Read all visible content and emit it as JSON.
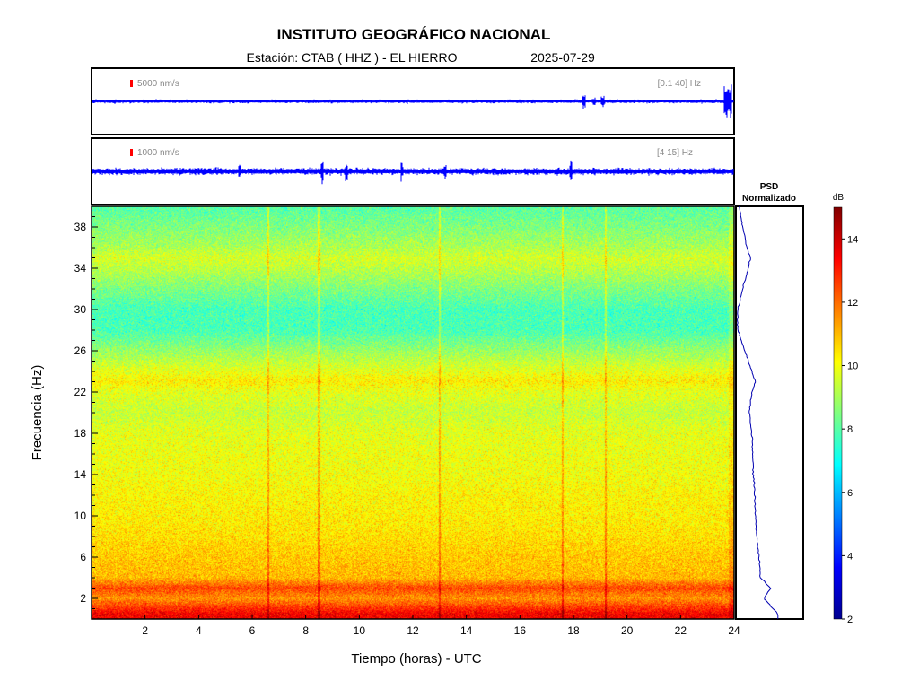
{
  "header": {
    "title": "INSTITUTO GEOGRÁFICO NACIONAL",
    "station_label": "Estación:  CTAB ( HHZ ) - EL HIERRO",
    "date": "2025-07-29"
  },
  "traces": [
    {
      "scale_label": "5000 nm/s",
      "filter_label": "[0.1 40] Hz",
      "color": "#0000ff",
      "scale_bar_color": "#ff0000"
    },
    {
      "scale_label": "1000 nm/s",
      "filter_label": "[4 15] Hz",
      "color": "#0000ff",
      "scale_bar_color": "#ff0000"
    }
  ],
  "psd_panel": {
    "title_line1": "PSD",
    "title_line2": "Normalizado"
  },
  "colorbar": {
    "unit": "dB",
    "min": 2,
    "max": 15,
    "ticks": [
      2,
      4,
      6,
      8,
      10,
      12,
      14
    ]
  },
  "chart_data": {
    "type": "heatmap",
    "xlabel": "Tiempo (horas) - UTC",
    "ylabel": "Frecuencia  (Hz)",
    "xlim": [
      0,
      24
    ],
    "ylim": [
      0,
      40
    ],
    "xticks": [
      2,
      4,
      6,
      8,
      10,
      12,
      14,
      16,
      18,
      20,
      22,
      24
    ],
    "yticks": [
      2,
      6,
      10,
      14,
      18,
      22,
      26,
      30,
      34,
      38
    ],
    "colormap": "jet",
    "mean_spectrum_dB": [
      {
        "freq": 0.5,
        "dB": 13.5
      },
      {
        "freq": 2,
        "dB": 11.5
      },
      {
        "freq": 3,
        "dB": 12.5
      },
      {
        "freq": 4,
        "dB": 11
      },
      {
        "freq": 6,
        "dB": 10.8
      },
      {
        "freq": 8,
        "dB": 10.5
      },
      {
        "freq": 10,
        "dB": 10.3
      },
      {
        "freq": 12,
        "dB": 10.2
      },
      {
        "freq": 14,
        "dB": 10
      },
      {
        "freq": 16,
        "dB": 9.9
      },
      {
        "freq": 18,
        "dB": 9.8
      },
      {
        "freq": 20,
        "dB": 9.4
      },
      {
        "freq": 22,
        "dB": 9.8
      },
      {
        "freq": 23,
        "dB": 10.3
      },
      {
        "freq": 24,
        "dB": 9.8
      },
      {
        "freq": 26,
        "dB": 8.8
      },
      {
        "freq": 28,
        "dB": 7.8
      },
      {
        "freq": 30,
        "dB": 7.8
      },
      {
        "freq": 32,
        "dB": 8.5
      },
      {
        "freq": 34,
        "dB": 9.3
      },
      {
        "freq": 35,
        "dB": 9.6
      },
      {
        "freq": 36,
        "dB": 9.1
      },
      {
        "freq": 38,
        "dB": 8.5
      },
      {
        "freq": 40,
        "dB": 8
      }
    ]
  }
}
